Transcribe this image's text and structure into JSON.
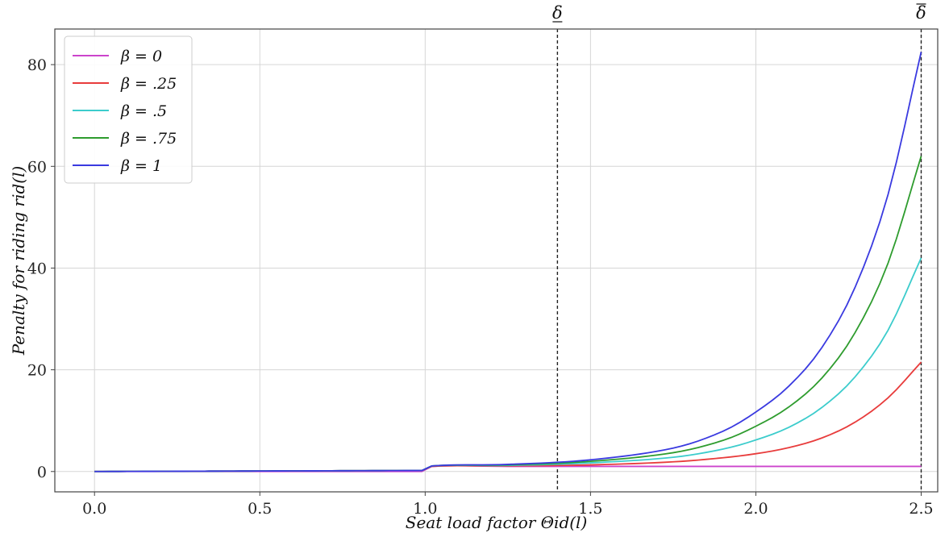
{
  "chart_data": {
    "type": "line",
    "title": "",
    "xlabel": "Seat load factor Θid(l)",
    "ylabel": "Penalty for riding rid(l)",
    "xlim": [
      -0.12,
      2.55
    ],
    "ylim": [
      -4,
      87
    ],
    "xticks": [
      0.0,
      0.5,
      1.0,
      1.5,
      2.0,
      2.5
    ],
    "xtick_labels": [
      "0.0",
      "0.5",
      "1.0",
      "1.5",
      "2.0",
      "2.5"
    ],
    "yticks": [
      0,
      20,
      40,
      60,
      80
    ],
    "ytick_labels": [
      "0",
      "20",
      "40",
      "60",
      "80"
    ],
    "grid": true,
    "legend_position": "top-left",
    "reference_lines": [
      {
        "x": 1.4,
        "label": "δ",
        "label_mark": "underline",
        "style": "dashed",
        "color": "#222222"
      },
      {
        "x": 2.5,
        "label": "δ",
        "label_mark": "overline",
        "style": "dashed",
        "color": "#222222"
      }
    ],
    "series": [
      {
        "name": "β = 0",
        "color": "#cc44cc",
        "x": [
          0.0,
          0.99,
          1.02,
          1.25,
          1.5,
          1.75,
          2.0,
          2.25,
          2.5
        ],
        "y": [
          0.0,
          0.0,
          1.0,
          1.0,
          1.0,
          1.0,
          1.0,
          1.0,
          1.0
        ]
      },
      {
        "name": "β = .25",
        "color": "#e83c3c",
        "x": [
          0.0,
          0.99,
          1.02,
          1.25,
          1.5,
          1.75,
          1.9,
          2.0,
          2.1,
          2.2,
          2.3,
          2.4,
          2.5
        ],
        "y": [
          0.0,
          0.2,
          1.0,
          1.1,
          1.3,
          1.9,
          2.7,
          3.5,
          4.7,
          6.6,
          9.7,
          14.5,
          21.5
        ]
      },
      {
        "name": "β = .5",
        "color": "#3ccccc",
        "x": [
          0.0,
          0.99,
          1.02,
          1.25,
          1.5,
          1.75,
          1.9,
          2.0,
          2.1,
          2.2,
          2.3,
          2.4,
          2.5
        ],
        "y": [
          0.0,
          0.2,
          1.1,
          1.2,
          1.7,
          2.8,
          4.4,
          6.2,
          8.7,
          12.6,
          18.6,
          27.8,
          42.0
        ]
      },
      {
        "name": "β = .75",
        "color": "#2e9c2e",
        "x": [
          0.0,
          0.99,
          1.02,
          1.25,
          1.5,
          1.75,
          1.9,
          2.0,
          2.1,
          2.2,
          2.3,
          2.4,
          2.5
        ],
        "y": [
          0.0,
          0.2,
          1.1,
          1.3,
          2.0,
          3.7,
          6.1,
          8.9,
          12.7,
          18.4,
          27.3,
          41.0,
          62.0
        ]
      },
      {
        "name": "β = 1",
        "color": "#3a3ae0",
        "x": [
          0.0,
          0.99,
          1.02,
          1.25,
          1.5,
          1.75,
          1.9,
          2.0,
          2.1,
          2.2,
          2.3,
          2.4,
          2.5
        ],
        "y": [
          0.0,
          0.2,
          1.1,
          1.4,
          2.3,
          4.6,
          7.9,
          11.7,
          16.8,
          24.4,
          36.2,
          54.5,
          82.5
        ]
      }
    ]
  }
}
